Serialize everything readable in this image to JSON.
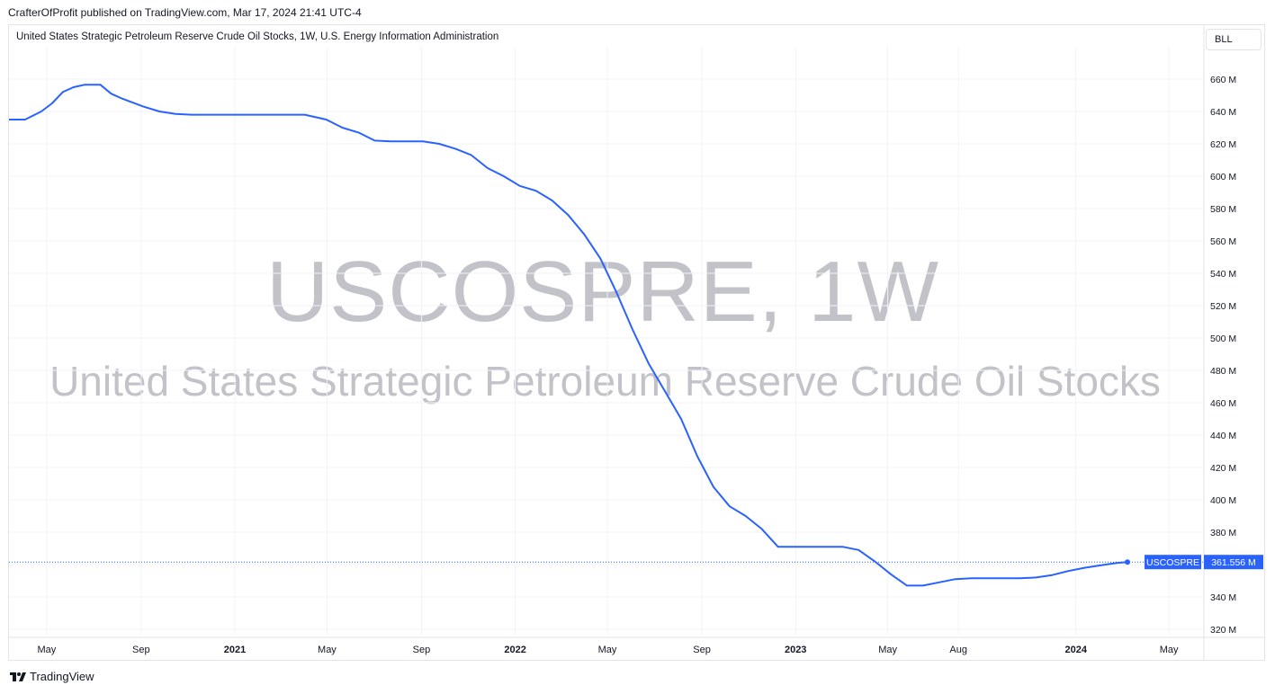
{
  "header": {
    "publisher_line": "CrafterOfProfit published on TradingView.com, Mar 17, 2024 21:41 UTC-4",
    "series_title": "United States Strategic Petroleum Reserve Crude Oil Stocks, 1W, U.S. Energy Information Administration",
    "scale_button": "BLL"
  },
  "watermark": {
    "symbol": "USCOSPRE, 1W",
    "description": "United States Strategic Petroleum Reserve Crude Oil Stocks"
  },
  "footer": {
    "brand": "TradingView",
    "brand_icon": "tradingview-logo-icon"
  },
  "colors": {
    "line": "#2962ff",
    "grid": "#f0f3fa",
    "label_bg": "#2962ff",
    "label_text": "#ffffff"
  },
  "last_value_label": {
    "symbol": "USCOSPRE",
    "value": "361.556 M"
  },
  "chart_data": {
    "type": "line",
    "title": "",
    "xlabel": "",
    "ylabel": "",
    "unit": "M barrels",
    "ylim": [
      310,
      670
    ],
    "xlim": [
      "2020-03-13",
      "2024-06-14"
    ],
    "y_ticks": [
      {
        "value": 660,
        "label": "660 M"
      },
      {
        "value": 640,
        "label": "640 M"
      },
      {
        "value": 620,
        "label": "620 M"
      },
      {
        "value": 600,
        "label": "600 M"
      },
      {
        "value": 580,
        "label": "580 M"
      },
      {
        "value": 560,
        "label": "560 M"
      },
      {
        "value": 540,
        "label": "540 M"
      },
      {
        "value": 520,
        "label": "520 M"
      },
      {
        "value": 500,
        "label": "500 M"
      },
      {
        "value": 480,
        "label": "480 M"
      },
      {
        "value": 460,
        "label": "460 M"
      },
      {
        "value": 440,
        "label": "440 M"
      },
      {
        "value": 420,
        "label": "420 M"
      },
      {
        "value": 400,
        "label": "400 M"
      },
      {
        "value": 380,
        "label": "380 M"
      },
      {
        "value": 360,
        "label": "360 M"
      },
      {
        "value": 340,
        "label": "340 M"
      },
      {
        "value": 320,
        "label": "320 M"
      }
    ],
    "x_ticks": [
      {
        "date": "2020-05-01",
        "label": "May",
        "year": false
      },
      {
        "date": "2020-09-01",
        "label": "Sep",
        "year": false
      },
      {
        "date": "2021-01-01",
        "label": "2021",
        "year": true
      },
      {
        "date": "2021-05-01",
        "label": "May",
        "year": false
      },
      {
        "date": "2021-09-01",
        "label": "Sep",
        "year": false
      },
      {
        "date": "2022-01-01",
        "label": "2022",
        "year": true
      },
      {
        "date": "2022-05-01",
        "label": "May",
        "year": false
      },
      {
        "date": "2022-09-01",
        "label": "Sep",
        "year": false
      },
      {
        "date": "2023-01-01",
        "label": "2023",
        "year": true
      },
      {
        "date": "2023-05-01",
        "label": "May",
        "year": false
      },
      {
        "date": "2023-08-01",
        "label": "Aug",
        "year": false
      },
      {
        "date": "2024-01-01",
        "label": "2024",
        "year": true
      },
      {
        "date": "2024-05-01",
        "label": "May",
        "year": false
      }
    ],
    "series": [
      {
        "name": "USCOSPRE",
        "x": [
          "2020-03-13",
          "2020-04-03",
          "2020-04-24",
          "2020-05-08",
          "2020-05-22",
          "2020-06-05",
          "2020-06-19",
          "2020-07-10",
          "2020-07-24",
          "2020-08-07",
          "2020-08-21",
          "2020-09-04",
          "2020-09-25",
          "2020-10-16",
          "2020-11-06",
          "2020-12-04",
          "2021-01-08",
          "2021-02-05",
          "2021-03-05",
          "2021-04-02",
          "2021-04-30",
          "2021-05-21",
          "2021-06-11",
          "2021-07-02",
          "2021-07-23",
          "2021-08-13",
          "2021-09-03",
          "2021-09-24",
          "2021-10-15",
          "2021-11-05",
          "2021-11-26",
          "2021-12-17",
          "2022-01-07",
          "2022-01-28",
          "2022-02-18",
          "2022-03-11",
          "2022-04-01",
          "2022-04-22",
          "2022-05-13",
          "2022-06-03",
          "2022-06-24",
          "2022-07-15",
          "2022-08-05",
          "2022-08-26",
          "2022-09-16",
          "2022-10-07",
          "2022-10-28",
          "2022-11-18",
          "2022-12-09",
          "2022-12-30",
          "2023-01-20",
          "2023-02-10",
          "2023-03-03",
          "2023-03-24",
          "2023-04-14",
          "2023-05-05",
          "2023-05-26",
          "2023-06-16",
          "2023-07-07",
          "2023-07-28",
          "2023-08-18",
          "2023-09-08",
          "2023-09-29",
          "2023-10-20",
          "2023-11-10",
          "2023-12-01",
          "2023-12-22",
          "2024-01-12",
          "2024-02-02",
          "2024-02-23",
          "2024-03-08"
        ],
        "values": [
          635,
          635,
          640,
          645,
          652,
          655,
          656.5,
          656.5,
          651,
          648,
          645.5,
          643,
          640,
          638.5,
          638,
          638,
          638,
          638,
          638,
          638,
          635,
          630,
          627,
          622,
          621.5,
          621.5,
          621.5,
          620,
          617,
          613,
          605,
          600,
          594,
          591,
          585,
          576,
          564,
          549,
          528,
          505,
          484,
          467,
          450,
          427,
          408,
          396,
          390,
          382,
          371,
          371,
          371,
          371,
          371,
          369,
          362,
          354,
          347,
          347,
          349,
          351,
          351.5,
          351.5,
          351.5,
          351.5,
          352,
          353.5,
          356,
          358,
          359.5,
          361,
          361.556
        ]
      }
    ],
    "grid": true,
    "legend": "none"
  }
}
